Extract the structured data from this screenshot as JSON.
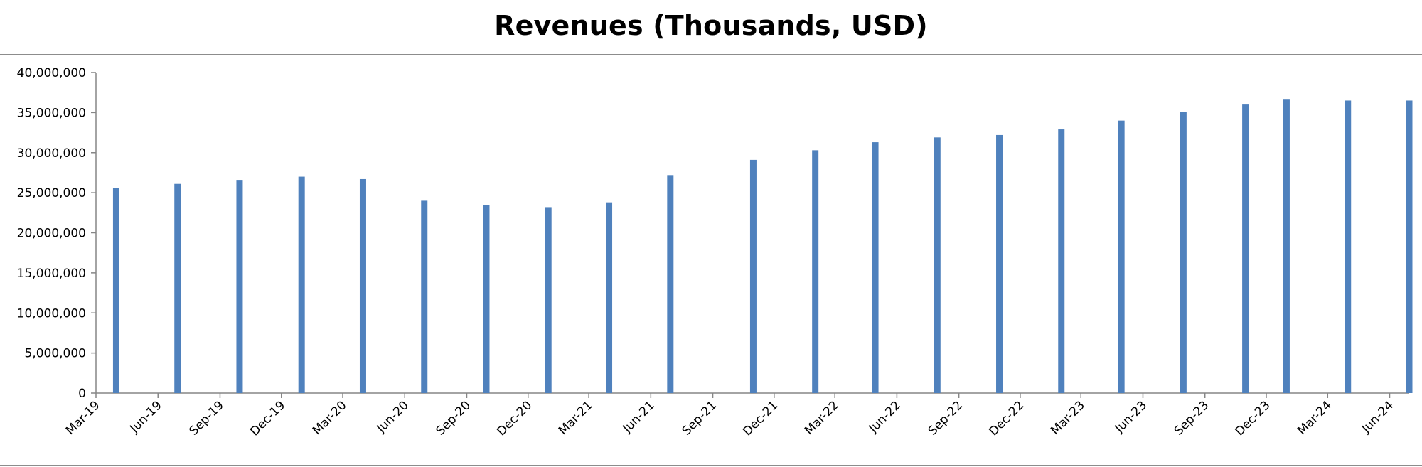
{
  "chart_data": {
    "type": "bar",
    "title": "Revenues (Thousands, USD)",
    "xlabel": "",
    "ylabel": "",
    "ylim": [
      0,
      40000000
    ],
    "y_ticks": [
      0,
      5000000,
      10000000,
      15000000,
      20000000,
      25000000,
      30000000,
      35000000,
      40000000
    ],
    "y_tick_labels": [
      "0",
      "5,000,000",
      "10,000,000",
      "15,000,000",
      "20,000,000",
      "25,000,000",
      "30,000,000",
      "35,000,000",
      "40,000,000"
    ],
    "x_axis_type": "date",
    "x_range": [
      "2019-03-01",
      "2024-06-30"
    ],
    "x_tick_dates": [
      "2019-03-01",
      "2019-06-01",
      "2019-09-01",
      "2019-12-01",
      "2020-03-01",
      "2020-06-01",
      "2020-09-01",
      "2020-12-01",
      "2021-03-01",
      "2021-06-01",
      "2021-09-01",
      "2021-12-01",
      "2022-03-01",
      "2022-06-01",
      "2022-09-01",
      "2022-12-01",
      "2023-03-01",
      "2023-06-01",
      "2023-09-01",
      "2023-12-01",
      "2024-03-01",
      "2024-06-01"
    ],
    "x_tick_labels": [
      "Mar-19",
      "Jun-19",
      "Sep-19",
      "Dec-19",
      "Mar-20",
      "Jun-20",
      "Sep-20",
      "Dec-20",
      "Mar-21",
      "Jun-21",
      "Sep-21",
      "Dec-21",
      "Mar-22",
      "Jun-22",
      "Sep-22",
      "Dec-22",
      "Mar-23",
      "Jun-23",
      "Sep-23",
      "Dec-23",
      "Mar-24",
      "Jun-24"
    ],
    "dates": [
      "2019-03-31",
      "2019-06-30",
      "2019-09-30",
      "2019-12-31",
      "2020-03-31",
      "2020-06-30",
      "2020-09-30",
      "2020-12-31",
      "2021-03-31",
      "2021-06-30",
      "2021-10-31",
      "2022-01-31",
      "2022-04-30",
      "2022-07-31",
      "2022-10-31",
      "2023-01-31",
      "2023-04-30",
      "2023-07-31",
      "2023-10-31",
      "2023-12-31",
      "2024-03-31",
      "2024-06-30"
    ],
    "values": [
      25600000,
      26100000,
      26600000,
      27000000,
      26700000,
      24000000,
      23500000,
      23200000,
      23800000,
      27200000,
      29100000,
      30300000,
      31300000,
      31900000,
      32200000,
      32900000,
      34000000,
      35100000,
      36000000,
      36700000,
      36500000,
      36500000
    ],
    "bar_color": "#4f81bd",
    "grid": false,
    "legend": "none"
  }
}
